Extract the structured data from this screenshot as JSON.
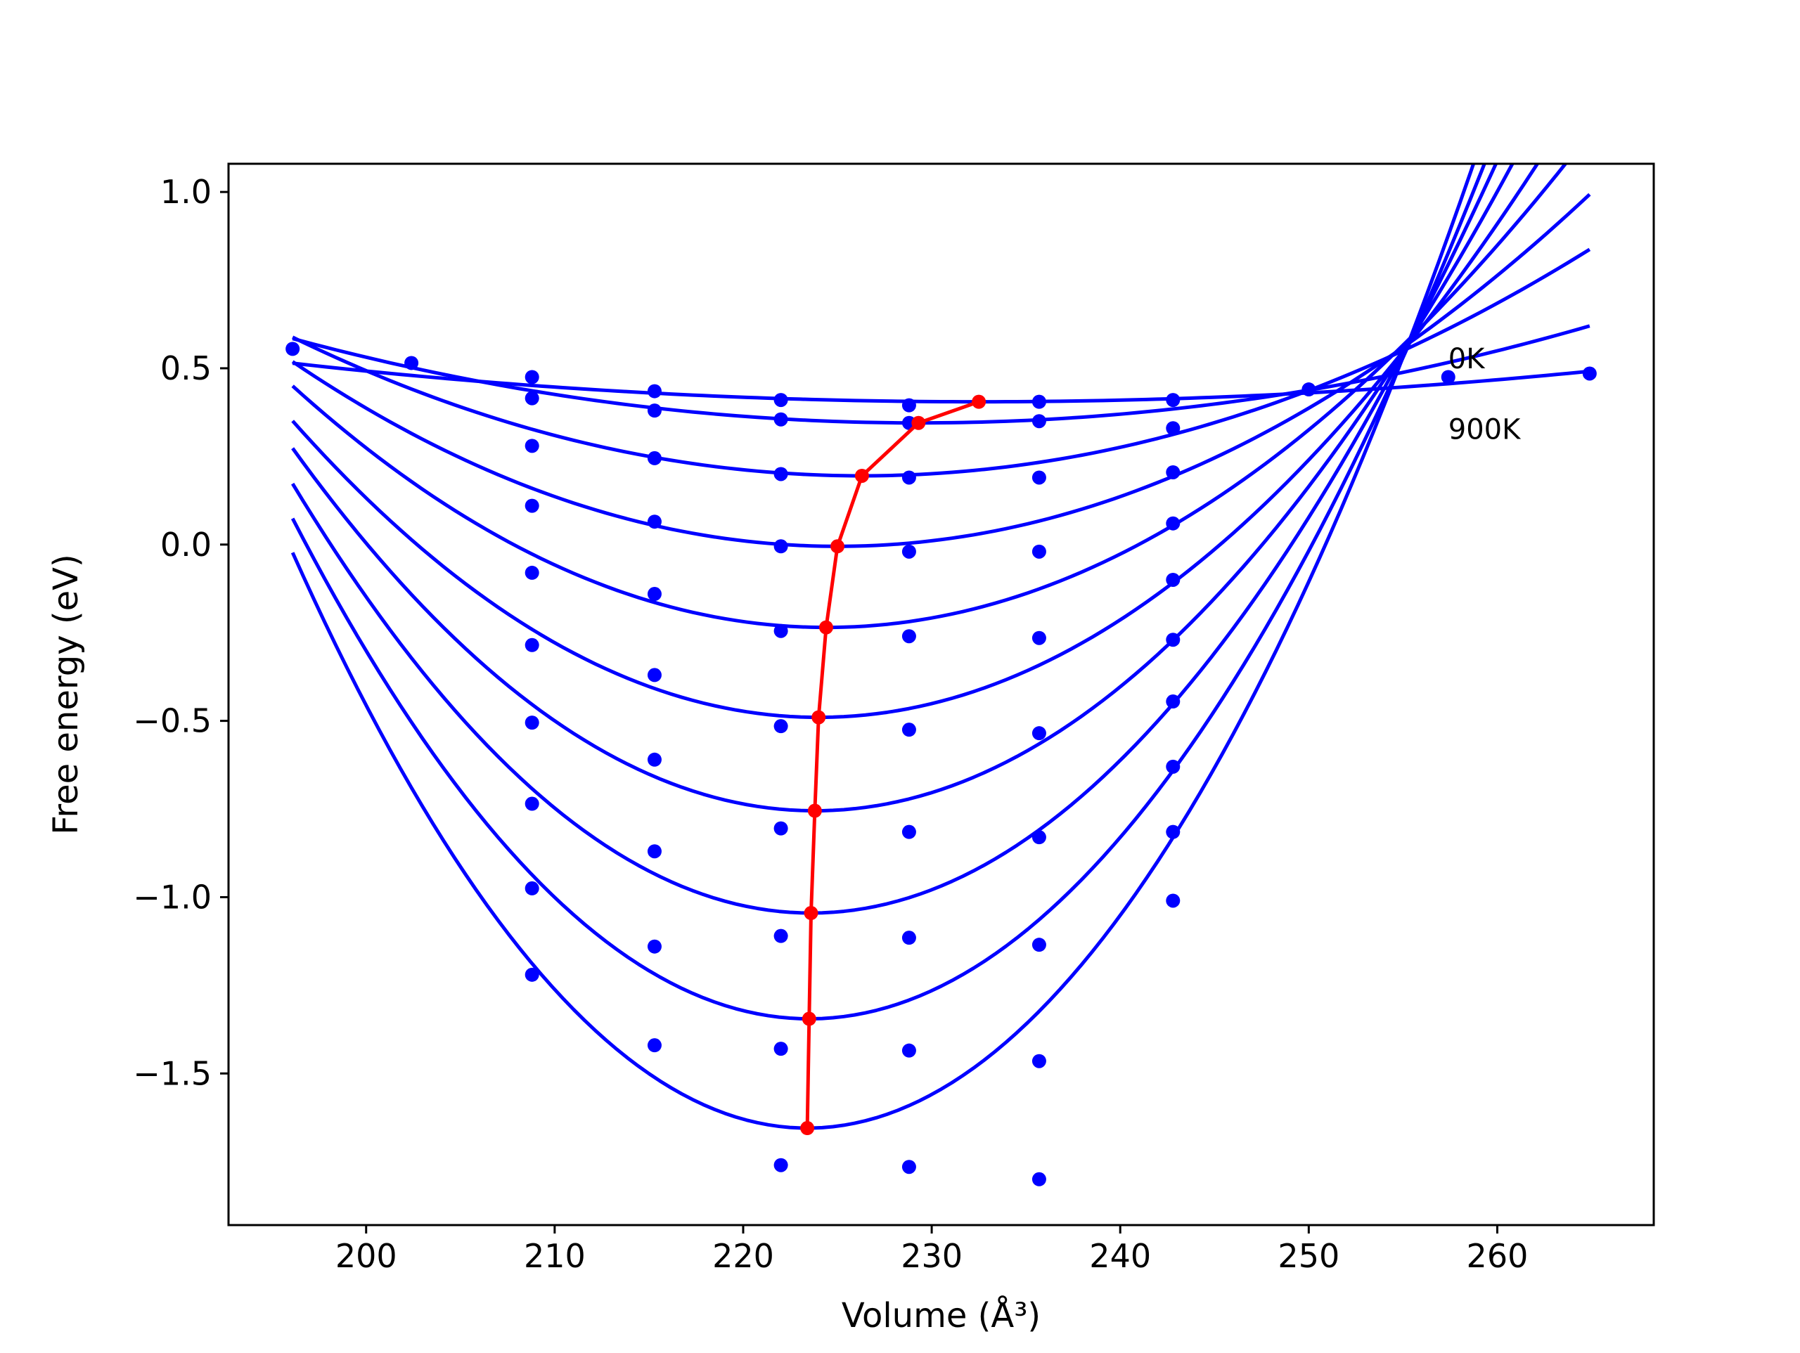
{
  "chart_data": {
    "type": "line",
    "title": "",
    "xlabel": "Volume (Å³)",
    "ylabel": "Free energy (eV)",
    "xlim": [
      192.7,
      268.3
    ],
    "ylim": [
      -1.93,
      1.08
    ],
    "x_ticks": [
      200,
      210,
      220,
      230,
      240,
      250,
      260
    ],
    "x_tick_labels": [
      "200",
      "210",
      "220",
      "230",
      "240",
      "250",
      "260"
    ],
    "y_ticks": [
      1.0,
      0.5,
      0.0,
      -0.5,
      -1.0,
      -1.5
    ],
    "y_tick_labels": [
      "1.0",
      "0.5",
      "0.0",
      "−0.5",
      "−1.0",
      "−1.5"
    ],
    "grid": false,
    "colors": {
      "fit": "#0000ff",
      "minimum": "#ff0000",
      "axis": "#000000"
    },
    "fit_curves": [
      {
        "vmin": 232.5,
        "fmin": 0.405,
        "k": 8.25e-05
      },
      {
        "vmin": 229.3,
        "fmin": 0.345,
        "k": 0.000217
      },
      {
        "vmin": 226.3,
        "fmin": 0.195,
        "k": 0.000431
      },
      {
        "vmin": 225.0,
        "fmin": -0.005,
        "k": 0.000627
      },
      {
        "vmin": 224.4,
        "fmin": -0.235,
        "k": 0.000855
      },
      {
        "vmin": 224.0,
        "fmin": -0.49,
        "k": 0.00108
      },
      {
        "vmin": 223.8,
        "fmin": -0.755,
        "k": 0.00134
      },
      {
        "vmin": 223.6,
        "fmin": -1.045,
        "k": 0.00161
      },
      {
        "vmin": 223.5,
        "fmin": -1.345,
        "k": 0.00189
      },
      {
        "vmin": 223.4,
        "fmin": -1.655,
        "k": 0.00219
      }
    ],
    "fit_range": [
      196.1,
      264.9
    ],
    "data_points": [
      [
        196.1,
        0.555
      ],
      [
        202.4,
        0.515
      ],
      [
        208.8,
        0.475
      ],
      [
        215.3,
        0.435
      ],
      [
        222.0,
        0.41
      ],
      [
        228.8,
        0.395
      ],
      [
        235.7,
        0.405
      ],
      [
        242.8,
        0.41
      ],
      [
        250.0,
        0.44
      ],
      [
        257.4,
        0.475
      ],
      [
        264.9,
        0.485
      ],
      [
        208.8,
        0.415
      ],
      [
        215.3,
        0.38
      ],
      [
        222.0,
        0.355
      ],
      [
        228.8,
        0.345
      ],
      [
        235.7,
        0.35
      ],
      [
        242.8,
        0.33
      ],
      [
        208.8,
        0.28
      ],
      [
        215.3,
        0.245
      ],
      [
        222.0,
        0.2
      ],
      [
        228.8,
        0.19
      ],
      [
        235.7,
        0.19
      ],
      [
        242.8,
        0.205
      ],
      [
        208.8,
        0.11
      ],
      [
        215.3,
        0.065
      ],
      [
        222.0,
        -0.005
      ],
      [
        228.8,
        -0.02
      ],
      [
        235.7,
        -0.02
      ],
      [
        242.8,
        0.06
      ],
      [
        208.8,
        -0.08
      ],
      [
        215.3,
        -0.14
      ],
      [
        222.0,
        -0.245
      ],
      [
        228.8,
        -0.26
      ],
      [
        235.7,
        -0.265
      ],
      [
        242.8,
        -0.1
      ],
      [
        208.8,
        -0.285
      ],
      [
        215.3,
        -0.37
      ],
      [
        222.0,
        -0.515
      ],
      [
        228.8,
        -0.525
      ],
      [
        235.7,
        -0.535
      ],
      [
        242.8,
        -0.27
      ],
      [
        208.8,
        -0.505
      ],
      [
        215.3,
        -0.61
      ],
      [
        222.0,
        -0.805
      ],
      [
        228.8,
        -0.815
      ],
      [
        235.7,
        -0.83
      ],
      [
        242.8,
        -0.445
      ],
      [
        208.8,
        -0.735
      ],
      [
        215.3,
        -0.87
      ],
      [
        222.0,
        -1.11
      ],
      [
        228.8,
        -1.115
      ],
      [
        235.7,
        -1.135
      ],
      [
        242.8,
        -0.63
      ],
      [
        208.8,
        -0.975
      ],
      [
        215.3,
        -1.14
      ],
      [
        222.0,
        -1.43
      ],
      [
        228.8,
        -1.435
      ],
      [
        235.7,
        -1.465
      ],
      [
        242.8,
        -0.815
      ],
      [
        208.8,
        -1.22
      ],
      [
        215.3,
        -1.42
      ],
      [
        222.0,
        -1.76
      ],
      [
        228.8,
        -1.765
      ],
      [
        235.7,
        -1.8
      ],
      [
        242.8,
        -1.01
      ]
    ],
    "minimum_path": {
      "x": [
        232.5,
        229.3,
        226.3,
        225.0,
        224.4,
        224.0,
        223.8,
        223.6,
        223.5,
        223.4
      ],
      "y": [
        0.405,
        0.345,
        0.195,
        -0.005,
        -0.235,
        -0.49,
        -0.755,
        -1.045,
        -1.345,
        -1.655
      ]
    },
    "annotations": [
      {
        "text": "0K",
        "x": 257.4,
        "y": 0.5
      },
      {
        "text": "900K",
        "x": 257.4,
        "y": 0.3
      }
    ]
  }
}
